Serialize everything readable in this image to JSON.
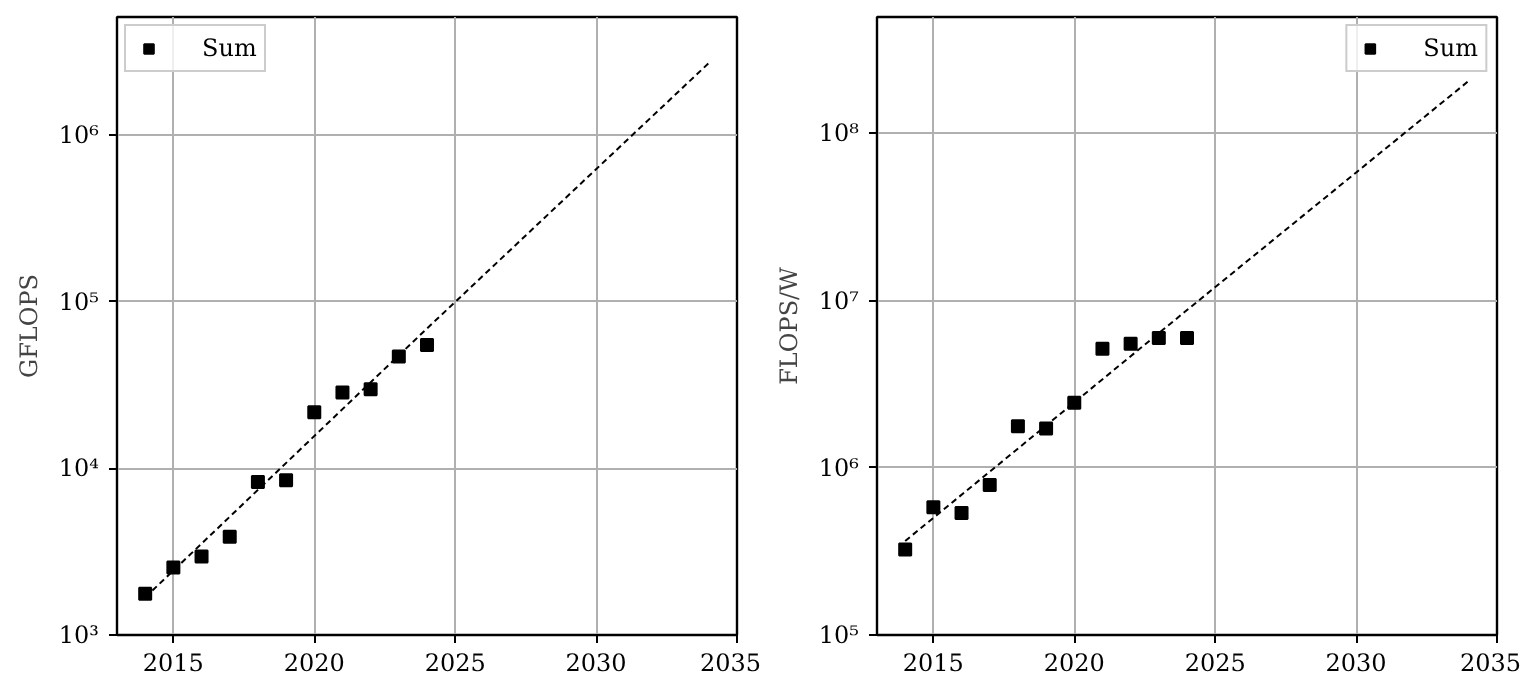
{
  "chart_data": [
    {
      "type": "scatter",
      "ylabel": "GFLOPS",
      "log": "y",
      "grid": true,
      "legend": "top left",
      "xlim": [
        2013,
        2035
      ],
      "xticks": [
        2015,
        2020,
        2025,
        2030,
        2035
      ],
      "ylim": [
        1000,
        5100000
      ],
      "yticks": [
        {
          "value": 1000,
          "label": "10³"
        },
        {
          "value": 10000,
          "label": "10⁴"
        },
        {
          "value": 100000,
          "label": "10⁵"
        },
        {
          "value": 1000000,
          "label": "10⁶"
        }
      ],
      "x": [
        2014,
        2015,
        2016,
        2017,
        2018,
        2019,
        2020,
        2021,
        2022,
        2023,
        2024
      ],
      "series": [
        {
          "name": "Sum",
          "type": "scatter",
          "marker": "square",
          "color": "#000000",
          "values": [
            1770,
            2540,
            2960,
            3880,
            8280,
            8490,
            21700,
            28500,
            29800,
            46900,
            55000
          ]
        },
        {
          "type": "line",
          "line_style": "dashed",
          "color": "#000000",
          "x": [
            2014,
            2024,
            2034
          ],
          "values": [
            1680,
            69000,
            2700000
          ]
        }
      ]
    },
    {
      "type": "scatter",
      "ylabel": "FLOPS/W",
      "log": "y",
      "grid": true,
      "legend": "top right",
      "xlim": [
        2013,
        2035
      ],
      "xticks": [
        2015,
        2020,
        2025,
        2030,
        2035
      ],
      "ylim": [
        100000,
        496000000
      ],
      "yticks": [
        {
          "value": 100000,
          "label": "10⁵"
        },
        {
          "value": 1000000,
          "label": "10⁶"
        },
        {
          "value": 10000000,
          "label": "10⁷"
        },
        {
          "value": 100000000,
          "label": "10⁸"
        }
      ],
      "x": [
        2014,
        2015,
        2016,
        2017,
        2018,
        2019,
        2020,
        2021,
        2022,
        2023,
        2024
      ],
      "series": [
        {
          "name": "Sum",
          "marker": "square",
          "color": "#000000",
          "values": [
            324000,
            580000,
            537000,
            790000,
            1770000,
            1720000,
            2450000,
            5140000,
            5520000,
            5980000,
            5980000
          ]
        },
        {
          "type": "line",
          "line_style": "dashed",
          "color": "#000000",
          "x": [
            2014,
            2024,
            2034
          ],
          "values": [
            365000,
            8770000,
            206000000
          ]
        }
      ]
    }
  ]
}
